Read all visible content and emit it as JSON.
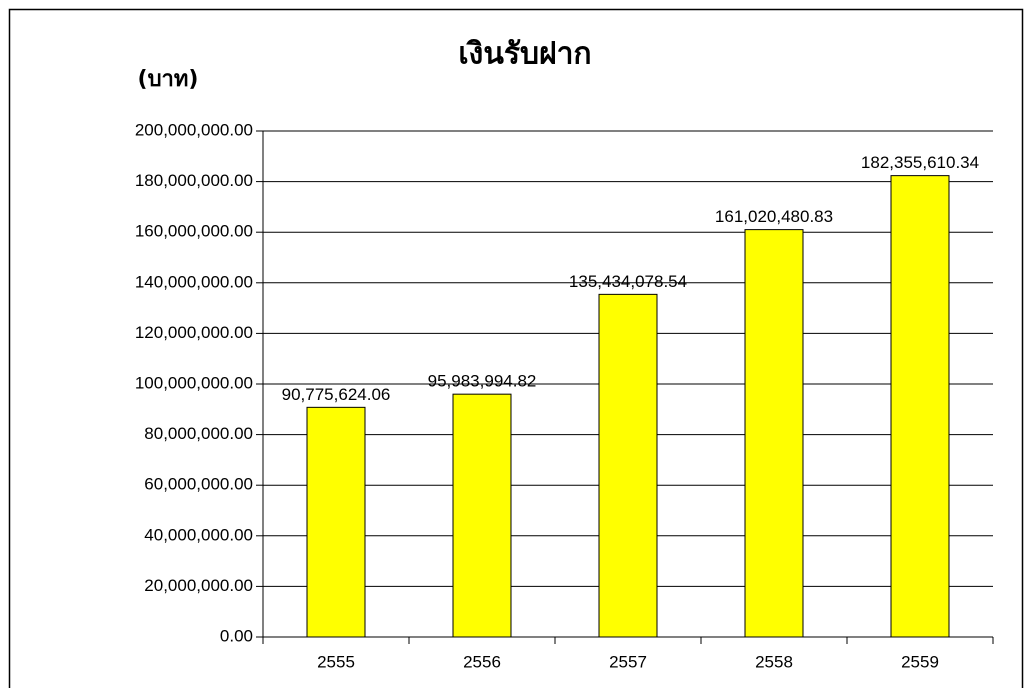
{
  "chart_data": {
    "type": "bar",
    "title": "เงินรับฝาก",
    "y_label": "(บาท)",
    "categories": [
      "2555",
      "2556",
      "2557",
      "2558",
      "2559"
    ],
    "values": [
      90775624.06,
      95983994.82,
      135434078.54,
      161020480.83,
      182355610.34
    ],
    "value_labels": [
      "90,775,624.06",
      "95,983,994.82",
      "135,434,078.54",
      "161,020,480.83",
      "182,355,610.34"
    ],
    "color": "#ffff00",
    "ylim": [
      0,
      200000000
    ],
    "yticks": [
      {
        "value": 0,
        "label": "0.00"
      },
      {
        "value": 20000000,
        "label": "20,000,000.00"
      },
      {
        "value": 40000000,
        "label": "40,000,000.00"
      },
      {
        "value": 60000000,
        "label": "60,000,000.00"
      },
      {
        "value": 80000000,
        "label": "80,000,000.00"
      },
      {
        "value": 100000000,
        "label": "100,000,000.00"
      },
      {
        "value": 120000000,
        "label": "120,000,000.00"
      },
      {
        "value": 140000000,
        "label": "140,000,000.00"
      },
      {
        "value": 160000000,
        "label": "160,000,000.00"
      },
      {
        "value": 180000000,
        "label": "180,000,000.00"
      },
      {
        "value": 200000000,
        "label": "200,000,000.00"
      }
    ],
    "grid": true
  }
}
